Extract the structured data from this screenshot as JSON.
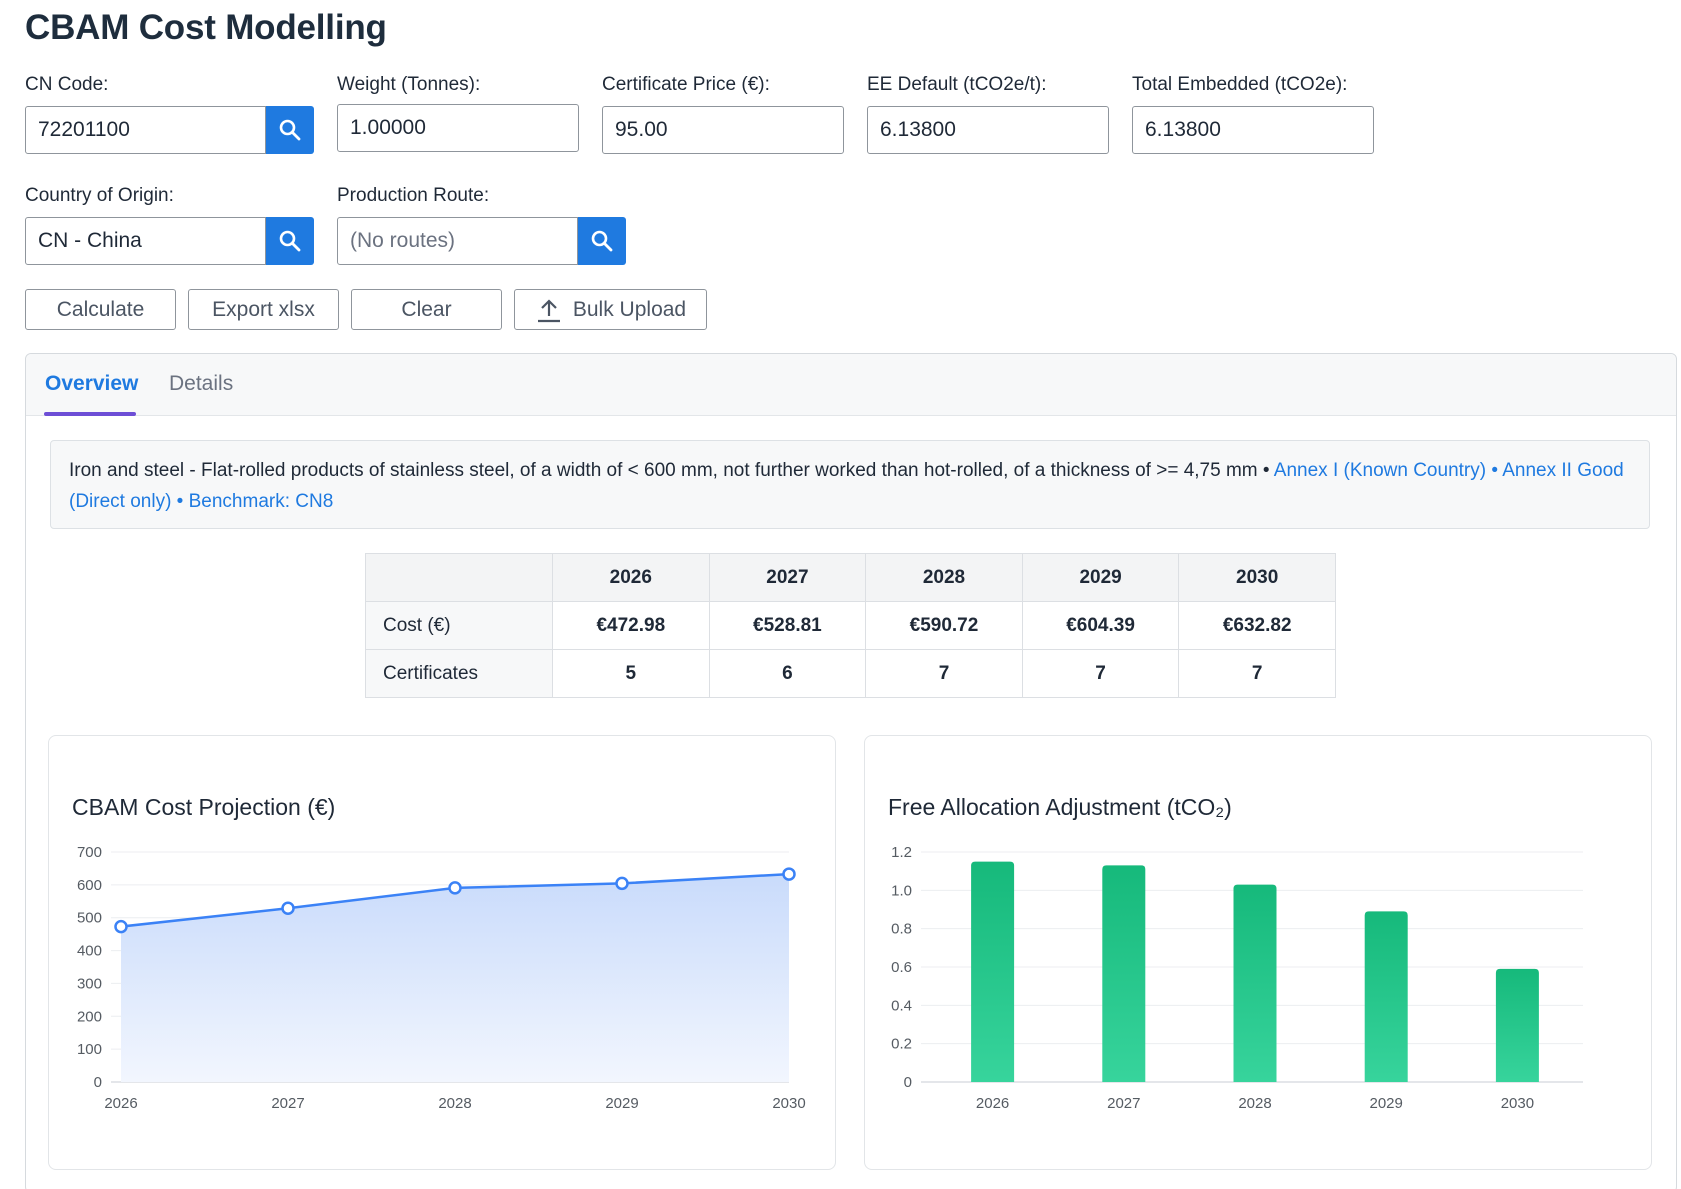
{
  "page": {
    "title": "CBAM Cost Modelling"
  },
  "form": {
    "cn_code": {
      "label": "CN Code:",
      "value": "72201100"
    },
    "weight": {
      "label": "Weight (Tonnes):",
      "value": "1.00000"
    },
    "certificate_price": {
      "label": "Certificate Price (€):",
      "value": "95.00"
    },
    "ee_default": {
      "label": "EE Default (tCO2e/t):",
      "value": "6.13800"
    },
    "total_embedded": {
      "label": "Total Embedded (tCO2e):",
      "value": "6.13800"
    },
    "country": {
      "label": "Country of Origin:",
      "value": "CN - China"
    },
    "route": {
      "label": "Production Route:",
      "placeholder": "(No routes)"
    }
  },
  "actions": {
    "calculate": "Calculate",
    "export": "Export xlsx",
    "clear": "Clear",
    "bulk_upload": "Bulk Upload"
  },
  "tabs": [
    {
      "label": "Overview",
      "active": true
    },
    {
      "label": "Details",
      "active": false
    }
  ],
  "description": {
    "text": "Iron and steel - Flat-rolled products of stainless steel, of a width of < 600 mm, not further worked than hot-rolled, of a thickness of >= 4,75 mm",
    "sep": " • ",
    "links": [
      "Annex I (Known Country)",
      "Annex II Good (Direct only)",
      "Benchmark: CN8"
    ]
  },
  "table": {
    "years": [
      "2026",
      "2027",
      "2028",
      "2029",
      "2030"
    ],
    "rows": [
      {
        "label": "Cost (€)",
        "values": [
          "€472.98",
          "€528.81",
          "€590.72",
          "€604.39",
          "€632.82"
        ]
      },
      {
        "label": "Certificates",
        "values": [
          "5",
          "6",
          "7",
          "7",
          "7"
        ]
      }
    ]
  },
  "colors": {
    "accent": "#1f7ae0",
    "tab_underline": "#6d4ed6",
    "line": "#3b82f6",
    "bar": "#22c58b"
  },
  "chart_data": [
    {
      "type": "area",
      "title": "CBAM Cost Projection (€)",
      "x": [
        "2026",
        "2027",
        "2028",
        "2029",
        "2030"
      ],
      "values": [
        472.98,
        528.81,
        590.72,
        604.39,
        632.82
      ],
      "yticks": [
        0,
        100,
        200,
        300,
        400,
        500,
        600,
        700
      ],
      "ylim": [
        0,
        700
      ],
      "grid": true
    },
    {
      "type": "bar",
      "title": "Free Allocation Adjustment (tCO₂)",
      "categories": [
        "2026",
        "2027",
        "2028",
        "2029",
        "2030"
      ],
      "values": [
        1.15,
        1.13,
        1.03,
        0.89,
        0.59
      ],
      "yticks": [
        "0",
        "0.2",
        "0.4",
        "0.6",
        "0.8",
        "1.0",
        "1.2"
      ],
      "ylim": [
        0,
        1.2
      ],
      "grid": true
    }
  ]
}
